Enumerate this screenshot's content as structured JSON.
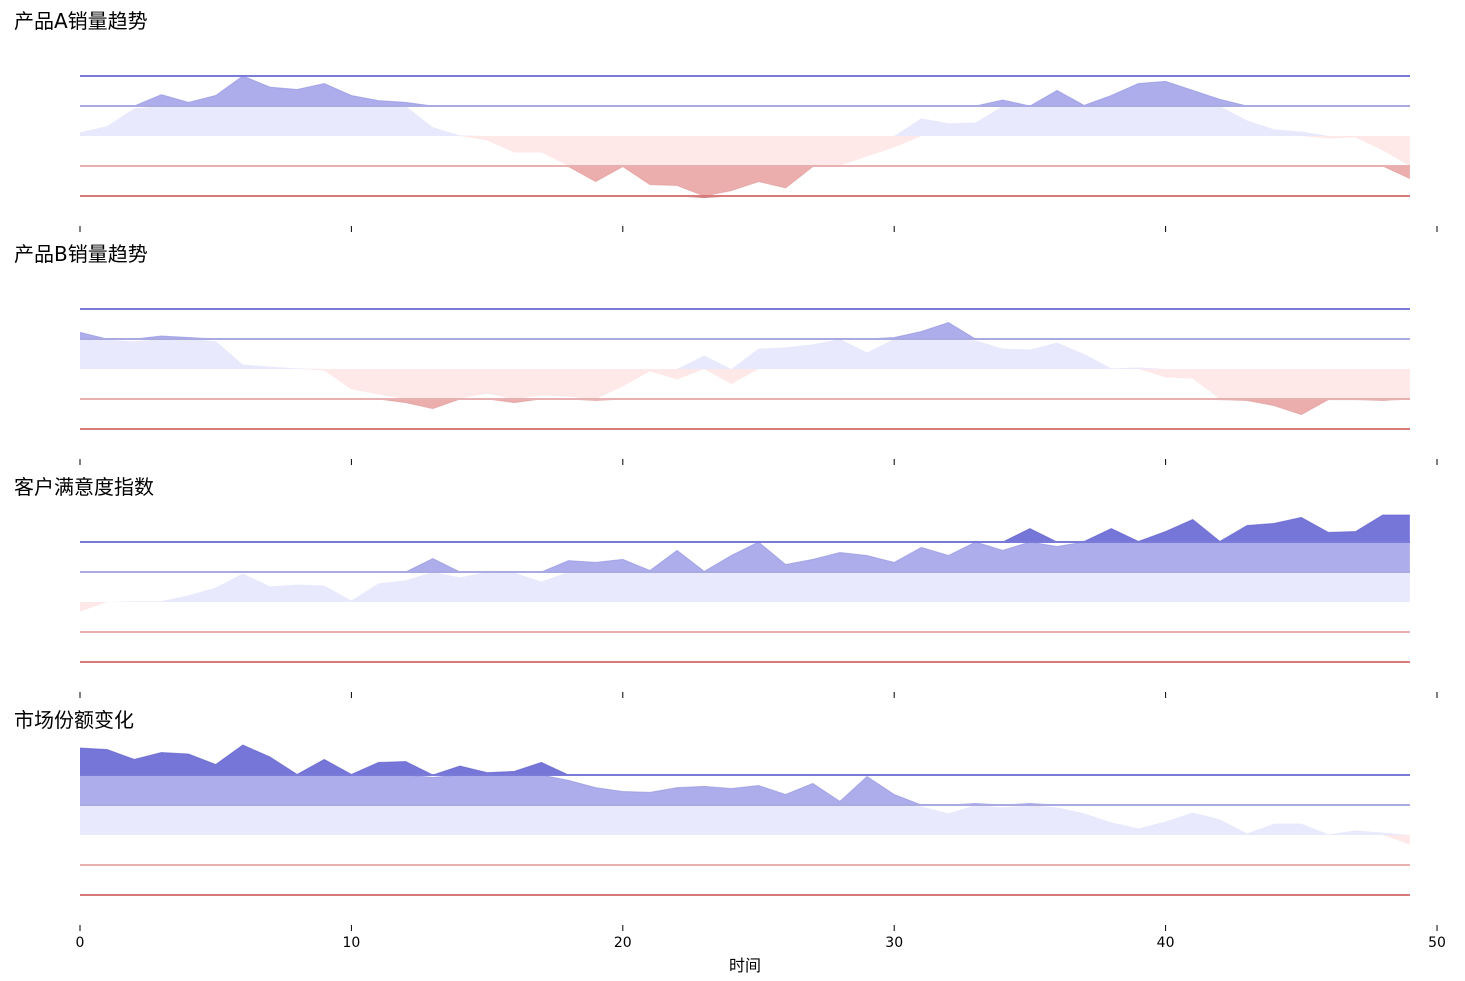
{
  "chart_data": {
    "type": "area",
    "xlabel": "时间",
    "xlim": [
      0,
      50
    ],
    "x_ticks": [
      0,
      10,
      20,
      30,
      40,
      50
    ],
    "x_tick_labels": [
      "0",
      "10",
      "20",
      "30",
      "40",
      "50"
    ],
    "style": "horizon",
    "band_count": 2,
    "legend": "none",
    "grid": false,
    "colors": {
      "positive_bands": [
        "#e9e9fd",
        "#adadec",
        "#7676d8"
      ],
      "negative_bands": [
        "#ffe8e8",
        "#ecadad",
        "#d37070"
      ],
      "positive_lines": [
        "#aaaae2",
        "#7a7ad8"
      ],
      "negative_lines": [
        "#e8b0b0",
        "#d87a7a"
      ]
    },
    "x": [
      0,
      1,
      2,
      3,
      4,
      5,
      6,
      7,
      8,
      9,
      10,
      11,
      12,
      13,
      14,
      15,
      16,
      17,
      18,
      19,
      20,
      21,
      22,
      23,
      24,
      25,
      26,
      27,
      28,
      29,
      30,
      31,
      32,
      33,
      34,
      35,
      36,
      37,
      38,
      39,
      40,
      41,
      42,
      43,
      44,
      45,
      46,
      47,
      48,
      49
    ],
    "panels": [
      {
        "title": "产品A销量趋势",
        "band": 1.0,
        "values": [
          0.12,
          0.33,
          0.92,
          1.38,
          1.12,
          1.35,
          2.0,
          1.63,
          1.55,
          1.75,
          1.35,
          1.18,
          1.12,
          0.29,
          0.02,
          -0.15,
          -0.55,
          -0.55,
          -1.02,
          -1.52,
          -1.02,
          -1.62,
          -1.65,
          -2.05,
          -1.82,
          -1.52,
          -1.73,
          -1.02,
          -0.99,
          -0.68,
          -0.38,
          0.59,
          0.42,
          0.45,
          1.2,
          1.0,
          1.52,
          1.02,
          1.35,
          1.75,
          1.82,
          1.52,
          1.22,
          0.52,
          0.22,
          0.15,
          -0.08,
          -0.05,
          -0.48,
          -1.42
        ]
      },
      {
        "title": "产品B销量趋势",
        "band": 1.0,
        "values": [
          1.22,
          0.98,
          0.92,
          1.1,
          1.05,
          0.93,
          0.15,
          0.08,
          0.02,
          -0.05,
          -0.68,
          -0.85,
          -1.12,
          -1.32,
          -0.98,
          -0.82,
          -1.12,
          -0.88,
          -0.92,
          -1.05,
          -0.58,
          -0.08,
          -0.35,
          0.45,
          -0.5,
          0.68,
          0.72,
          0.82,
          1.0,
          0.55,
          1.05,
          1.25,
          1.55,
          0.95,
          0.68,
          0.65,
          0.88,
          0.5,
          0.02,
          0.05,
          -0.28,
          -0.32,
          -1.02,
          -1.05,
          -1.22,
          -1.52,
          -1.02,
          -1.02,
          -1.05,
          -1.0
        ]
      },
      {
        "title": "客户满意度指数",
        "band": 1.0,
        "values": [
          -0.32,
          0.0,
          0.02,
          0.03,
          0.22,
          0.48,
          0.95,
          0.52,
          0.58,
          0.55,
          0.05,
          0.62,
          0.72,
          1.45,
          0.82,
          1.02,
          0.98,
          0.68,
          1.38,
          1.32,
          1.42,
          1.05,
          1.72,
          1.02,
          1.55,
          2.02,
          1.25,
          1.42,
          1.65,
          1.55,
          1.32,
          1.82,
          1.55,
          2.02,
          1.72,
          2.45,
          1.85,
          2.02,
          2.45,
          2.02,
          2.35,
          2.75,
          2.02,
          2.55,
          2.62,
          2.82,
          2.32,
          2.35,
          2.9,
          2.9
        ]
      },
      {
        "title": "市场份额变化",
        "band": 1.0,
        "values": [
          2.9,
          2.85,
          2.52,
          2.75,
          2.7,
          2.35,
          3.0,
          2.6,
          2.02,
          2.52,
          2.02,
          2.42,
          2.45,
          1.92,
          2.3,
          2.08,
          2.12,
          2.42,
          1.82,
          1.58,
          1.45,
          1.42,
          1.58,
          1.62,
          1.55,
          1.65,
          1.35,
          1.72,
          1.12,
          1.95,
          1.35,
          0.95,
          0.72,
          1.05,
          0.92,
          1.05,
          0.92,
          0.72,
          0.42,
          0.22,
          0.45,
          0.75,
          0.52,
          0.05,
          0.38,
          0.38,
          0.02,
          0.15,
          0.08,
          -0.32
        ]
      }
    ]
  }
}
